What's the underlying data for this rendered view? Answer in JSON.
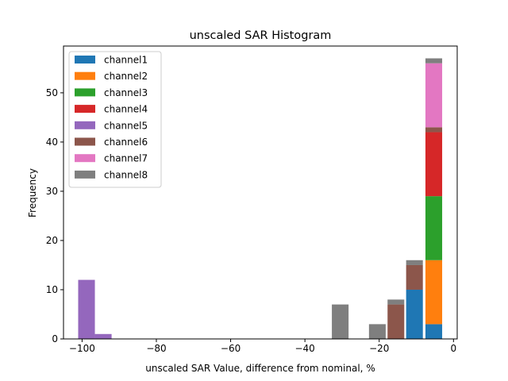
{
  "chart_data": {
    "type": "bar",
    "stacked": true,
    "title": "unscaled SAR Histogram",
    "xlabel": "unscaled SAR Value, difference from nominal, %",
    "ylabel": "Frequency",
    "xlim": [
      -105,
      1
    ],
    "ylim": [
      0,
      59.5
    ],
    "xticks": [
      -100,
      -80,
      -60,
      -40,
      -20,
      0
    ],
    "yticks": [
      0,
      10,
      20,
      30,
      40,
      50
    ],
    "xtick_labels": [
      "−100",
      "−80",
      "−60",
      "−40",
      "−20",
      "0"
    ],
    "ytick_labels": [
      "0",
      "10",
      "20",
      "30",
      "40",
      "50"
    ],
    "bin_width": 4.5,
    "bin_centers": [
      -98.8,
      -94.3,
      -30.5,
      -20.5,
      -15.5,
      -10.5,
      -5.3
    ],
    "legend_position": "upper-left",
    "series": [
      {
        "name": "channel1",
        "color": "#1f77b4",
        "values": [
          0,
          0,
          0,
          0,
          0,
          10,
          3
        ]
      },
      {
        "name": "channel2",
        "color": "#ff7f0e",
        "values": [
          0,
          0,
          0,
          0,
          0,
          0,
          13
        ]
      },
      {
        "name": "channel3",
        "color": "#2ca02c",
        "values": [
          0,
          0,
          0,
          0,
          0,
          0,
          13
        ]
      },
      {
        "name": "channel4",
        "color": "#d62728",
        "values": [
          0,
          0,
          0,
          0,
          0,
          0,
          13
        ]
      },
      {
        "name": "channel5",
        "color": "#9467bd",
        "values": [
          12,
          1,
          0,
          0,
          0,
          0,
          0
        ]
      },
      {
        "name": "channel6",
        "color": "#8c564b",
        "values": [
          0,
          0,
          0,
          0,
          7,
          5,
          1
        ]
      },
      {
        "name": "channel7",
        "color": "#e377c2",
        "values": [
          0,
          0,
          0,
          0,
          0,
          0,
          13
        ]
      },
      {
        "name": "channel8",
        "color": "#7f7f7f",
        "values": [
          0,
          0,
          7,
          3,
          1,
          1,
          1
        ]
      }
    ]
  }
}
